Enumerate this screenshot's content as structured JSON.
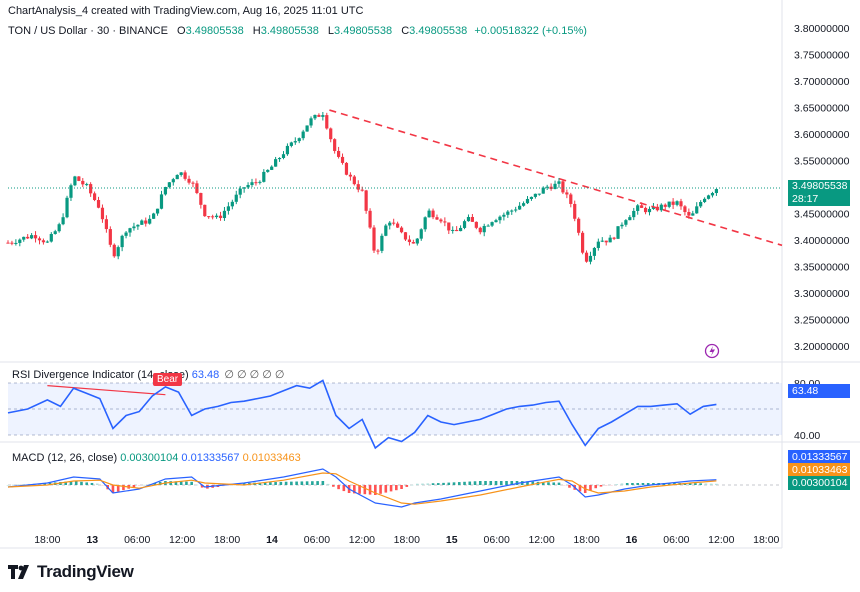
{
  "header": {
    "credit": "ChartAnalysis_4 created with TradingView.com, Aug 16, 2025 11:01 UTC",
    "symbol": "TON / US Dollar · 30 · BINANCE",
    "o_label": "O",
    "o_value": "3.49805538",
    "h_label": "H",
    "h_value": "3.49805538",
    "l_label": "L",
    "l_value": "3.49805538",
    "c_label": "C",
    "c_value": "3.49805538",
    "change": "+0.00518322 (+0.15%)"
  },
  "price_axis": {
    "ticks": [
      "3.80000000",
      "3.75000000",
      "3.70000000",
      "3.65000000",
      "3.60000000",
      "3.55000000",
      "3.50000000",
      "3.45000000",
      "3.40000000",
      "3.35000000",
      "3.30000000",
      "3.25000000",
      "3.20000000"
    ],
    "last_price": "3.49805538",
    "countdown": "28:17"
  },
  "time_axis": [
    "18:00",
    "13",
    "06:00",
    "12:00",
    "18:00",
    "14",
    "06:00",
    "12:00",
    "18:00",
    "15",
    "06:00",
    "12:00",
    "18:00",
    "16",
    "06:00",
    "12:00",
    "18:00"
  ],
  "rsi": {
    "legend": "RSI Divergence Indicator (14, close)",
    "value": "63.48",
    "legend_value": "63.48",
    "dots": "∅ ∅ ∅ ∅ ∅",
    "bear_label": "Bear",
    "ticks": [
      "80.00",
      "40.00"
    ]
  },
  "macd": {
    "legend": "MACD (12, 26, close)",
    "v1": "0.00300104",
    "v2": "0.01333567",
    "v3": "0.01033463",
    "tag_macd": "0.01333567",
    "tag_signal": "0.01033463",
    "tag_hist": "0.00300104"
  },
  "brand": "TradingView",
  "colors": {
    "up": "#089981",
    "down": "#f23645",
    "rsi": "#2962ff",
    "signal": "#f7931a",
    "trend": "#f23645"
  },
  "chart_data": [
    {
      "type": "candlestick",
      "title": "TON / US Dollar · 30 · BINANCE",
      "ylim": [
        3.15,
        3.82
      ],
      "x_range": [
        0,
        118
      ],
      "close_path": [
        [
          0,
          3.395
        ],
        [
          4,
          3.41
        ],
        [
          6,
          3.395
        ],
        [
          8,
          3.43
        ],
        [
          10,
          3.52
        ],
        [
          12,
          3.5
        ],
        [
          14,
          3.46
        ],
        [
          16,
          3.37
        ],
        [
          18,
          3.42
        ],
        [
          20,
          3.43
        ],
        [
          22,
          3.44
        ],
        [
          24,
          3.5
        ],
        [
          26,
          3.53
        ],
        [
          28,
          3.51
        ],
        [
          30,
          3.45
        ],
        [
          32,
          3.44
        ],
        [
          34,
          3.47
        ],
        [
          36,
          3.5
        ],
        [
          38,
          3.51
        ],
        [
          40,
          3.535
        ],
        [
          42,
          3.565
        ],
        [
          44,
          3.59
        ],
        [
          46,
          3.625
        ],
        [
          48,
          3.64
        ],
        [
          50,
          3.56
        ],
        [
          52,
          3.52
        ],
        [
          54,
          3.49
        ],
        [
          56,
          3.37
        ],
        [
          58,
          3.44
        ],
        [
          60,
          3.41
        ],
        [
          62,
          3.39
        ],
        [
          64,
          3.455
        ],
        [
          66,
          3.44
        ],
        [
          68,
          3.41
        ],
        [
          70,
          3.44
        ],
        [
          72,
          3.42
        ],
        [
          74,
          3.44
        ],
        [
          76,
          3.45
        ],
        [
          78,
          3.465
        ],
        [
          80,
          3.48
        ],
        [
          82,
          3.5
        ],
        [
          84,
          3.505
        ],
        [
          86,
          3.465
        ],
        [
          88,
          3.36
        ],
        [
          90,
          3.4
        ],
        [
          92,
          3.4
        ],
        [
          94,
          3.44
        ],
        [
          96,
          3.46
        ],
        [
          98,
          3.455
        ],
        [
          100,
          3.465
        ],
        [
          102,
          3.47
        ],
        [
          104,
          3.44
        ],
        [
          106,
          3.48
        ],
        [
          108,
          3.498
        ]
      ],
      "trendline": [
        [
          49,
          3.645
        ],
        [
          118,
          3.39
        ]
      ]
    },
    {
      "type": "line",
      "title": "RSI Divergence Indicator (14, close)",
      "ylim": [
        30,
        90
      ],
      "series": [
        {
          "name": "RSI",
          "values": [
            [
              0,
              57
            ],
            [
              3,
              60
            ],
            [
              6,
              67
            ],
            [
              8,
              62
            ],
            [
              10,
              76
            ],
            [
              12,
              72
            ],
            [
              14,
              68
            ],
            [
              16,
              45
            ],
            [
              18,
              55
            ],
            [
              20,
              58
            ],
            [
              22,
              70
            ],
            [
              24,
              77
            ],
            [
              26,
              73
            ],
            [
              28,
              55
            ],
            [
              30,
              60
            ],
            [
              32,
              62
            ],
            [
              34,
              65
            ],
            [
              36,
              66
            ],
            [
              38,
              68
            ],
            [
              40,
              70
            ],
            [
              42,
              74
            ],
            [
              44,
              78
            ],
            [
              46,
              76
            ],
            [
              48,
              82
            ],
            [
              50,
              55
            ],
            [
              52,
              45
            ],
            [
              54,
              52
            ],
            [
              56,
              30
            ],
            [
              58,
              38
            ],
            [
              60,
              35
            ],
            [
              62,
              42
            ],
            [
              64,
              55
            ],
            [
              66,
              50
            ],
            [
              68,
              48
            ],
            [
              70,
              50
            ],
            [
              72,
              52
            ],
            [
              74,
              56
            ],
            [
              76,
              60
            ],
            [
              78,
              62
            ],
            [
              80,
              63
            ],
            [
              82,
              65
            ],
            [
              84,
              66
            ],
            [
              86,
              48
            ],
            [
              88,
              32
            ],
            [
              90,
              45
            ],
            [
              92,
              50
            ],
            [
              94,
              56
            ],
            [
              96,
              62
            ],
            [
              98,
              62
            ],
            [
              100,
              63
            ],
            [
              102,
              64
            ],
            [
              104,
              56
            ],
            [
              106,
              62
            ],
            [
              108,
              63.48
            ]
          ]
        }
      ]
    },
    {
      "type": "line",
      "title": "MACD (12, 26, close)",
      "series": [
        {
          "name": "MACD",
          "values": [
            [
              0,
              -0.005
            ],
            [
              6,
              0.005
            ],
            [
              10,
              0.02
            ],
            [
              14,
              0.015
            ],
            [
              16,
              -0.02
            ],
            [
              20,
              -0.01
            ],
            [
              24,
              0.015
            ],
            [
              28,
              0.02
            ],
            [
              30,
              -0.005
            ],
            [
              36,
              0.005
            ],
            [
              42,
              0.02
            ],
            [
              48,
              0.04
            ],
            [
              50,
              0.02
            ],
            [
              52,
              -0.01
            ],
            [
              56,
              -0.045
            ],
            [
              60,
              -0.055
            ],
            [
              62,
              -0.045
            ],
            [
              66,
              -0.035
            ],
            [
              72,
              -0.015
            ],
            [
              78,
              0.005
            ],
            [
              82,
              0.015
            ],
            [
              84,
              0.02
            ],
            [
              86,
              0.0
            ],
            [
              88,
              -0.03
            ],
            [
              90,
              -0.025
            ],
            [
              94,
              -0.01
            ],
            [
              98,
              0.0
            ],
            [
              104,
              0.01
            ],
            [
              108,
              0.01333567
            ]
          ]
        },
        {
          "name": "Signal",
          "values": [
            [
              0,
              -0.005
            ],
            [
              6,
              0.0
            ],
            [
              10,
              0.01
            ],
            [
              14,
              0.012
            ],
            [
              16,
              0.0
            ],
            [
              20,
              -0.008
            ],
            [
              24,
              0.005
            ],
            [
              28,
              0.012
            ],
            [
              30,
              0.005
            ],
            [
              36,
              0.0
            ],
            [
              42,
              0.012
            ],
            [
              48,
              0.03
            ],
            [
              50,
              0.028
            ],
            [
              52,
              0.01
            ],
            [
              56,
              -0.02
            ],
            [
              60,
              -0.045
            ],
            [
              62,
              -0.048
            ],
            [
              66,
              -0.04
            ],
            [
              72,
              -0.025
            ],
            [
              78,
              -0.005
            ],
            [
              82,
              0.008
            ],
            [
              84,
              0.014
            ],
            [
              86,
              0.01
            ],
            [
              88,
              -0.01
            ],
            [
              90,
              -0.02
            ],
            [
              94,
              -0.015
            ],
            [
              98,
              -0.005
            ],
            [
              104,
              0.005
            ],
            [
              108,
              0.01033463
            ]
          ]
        }
      ]
    }
  ]
}
